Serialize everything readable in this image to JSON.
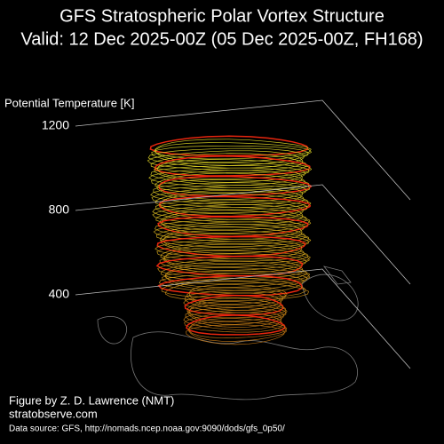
{
  "chart_data": {
    "type": "vortex3d",
    "title": "GFS Stratospheric Polar Vortex Structure",
    "subtitle": "Valid: 12 Dec 2025-00Z  (05 Dec 2025-00Z, FH168)",
    "zlabel": "Potential Temperature [K]",
    "zlim": [
      400,
      1200
    ],
    "zticks": [
      400,
      800,
      1200
    ],
    "grid": true,
    "credit": "Figure by Z. D. Lawrence (NMT)",
    "website": "stratobserve.com",
    "source": "Data source: GFS, http://nomads.ncep.noaa.gov:9090/dods/gfs_0p50/"
  }
}
